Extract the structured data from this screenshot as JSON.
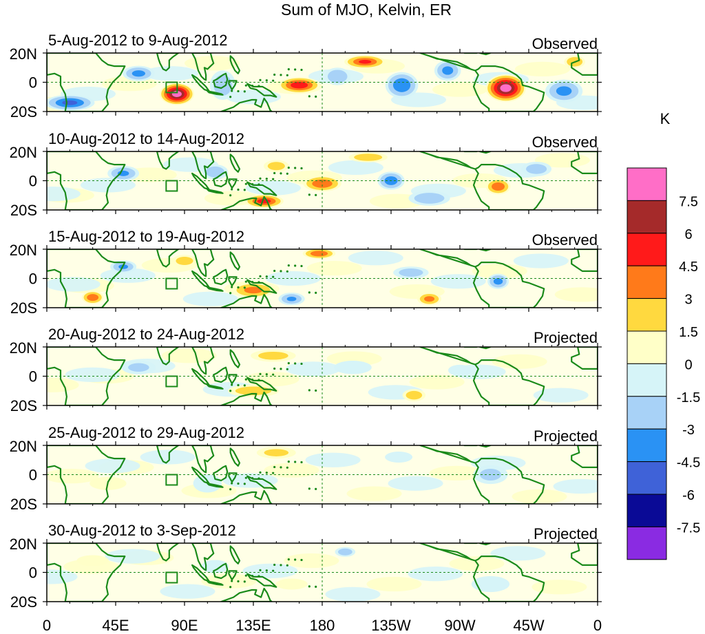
{
  "title": "Sum of MJO, Kelvin, ER",
  "panels": [
    {
      "period": "5-Aug-2012 to 9-Aug-2012",
      "kind": "Observed",
      "amp": 1.0,
      "blobs": [
        {
          "lon": 85,
          "lat": -8,
          "w": 12,
          "h": 8,
          "v": 9
        },
        {
          "lon": 300,
          "lat": -4,
          "w": 14,
          "h": 10,
          "v": 9
        },
        {
          "lon": 165,
          "lat": -2,
          "w": 15,
          "h": 6,
          "v": 6
        },
        {
          "lon": 208,
          "lat": 14,
          "w": 15,
          "h": 5,
          "v": 5
        },
        {
          "lon": 15,
          "lat": -14,
          "w": 18,
          "h": 6,
          "v": -5
        },
        {
          "lon": 60,
          "lat": 6,
          "w": 12,
          "h": 6,
          "v": -3.5
        },
        {
          "lon": 115,
          "lat": -2,
          "w": 10,
          "h": 12,
          "v": -2.5
        },
        {
          "lon": 190,
          "lat": 4,
          "w": 10,
          "h": 7,
          "v": -3
        },
        {
          "lon": 232,
          "lat": -2,
          "w": 12,
          "h": 10,
          "v": -4.5
        },
        {
          "lon": 262,
          "lat": 8,
          "w": 10,
          "h": 8,
          "v": -3.5
        },
        {
          "lon": 338,
          "lat": -6,
          "w": 14,
          "h": 9,
          "v": -3.5
        },
        {
          "lon": 345,
          "lat": 14,
          "w": 8,
          "h": 5,
          "v": 3
        }
      ]
    },
    {
      "period": "10-Aug-2012 to 14-Aug-2012",
      "kind": "Observed",
      "amp": 0.9,
      "blobs": [
        {
          "lon": 142,
          "lat": -14,
          "w": 14,
          "h": 5,
          "v": 6
        },
        {
          "lon": 180,
          "lat": -2,
          "w": 14,
          "h": 6,
          "v": 5
        },
        {
          "lon": 295,
          "lat": -4,
          "w": 9,
          "h": 6,
          "v": 5
        },
        {
          "lon": 210,
          "lat": 16,
          "w": 15,
          "h": 4,
          "v": 3
        },
        {
          "lon": 50,
          "lat": 5,
          "w": 12,
          "h": 6,
          "v": -3.5
        },
        {
          "lon": 110,
          "lat": 6,
          "w": 10,
          "h": 6,
          "v": -3
        },
        {
          "lon": 225,
          "lat": 0,
          "w": 10,
          "h": 7,
          "v": -4.5
        },
        {
          "lon": 250,
          "lat": -12,
          "w": 16,
          "h": 6,
          "v": -3
        },
        {
          "lon": 320,
          "lat": 8,
          "w": 12,
          "h": 6,
          "v": -2.5
        },
        {
          "lon": 150,
          "lat": 10,
          "w": 10,
          "h": 5,
          "v": 2.5
        }
      ]
    },
    {
      "period": "15-Aug-2012 to 19-Aug-2012",
      "kind": "Observed",
      "amp": 0.9,
      "blobs": [
        {
          "lon": 30,
          "lat": -13,
          "w": 8,
          "h": 5,
          "v": 5
        },
        {
          "lon": 135,
          "lat": -8,
          "w": 16,
          "h": 6,
          "v": 4
        },
        {
          "lon": 178,
          "lat": 17,
          "w": 12,
          "h": 4,
          "v": 5
        },
        {
          "lon": 250,
          "lat": -14,
          "w": 9,
          "h": 5,
          "v": 4
        },
        {
          "lon": 50,
          "lat": 8,
          "w": 10,
          "h": 5,
          "v": -3.5
        },
        {
          "lon": 160,
          "lat": -14,
          "w": 10,
          "h": 5,
          "v": -3.5
        },
        {
          "lon": 295,
          "lat": -2,
          "w": 8,
          "h": 6,
          "v": -4
        },
        {
          "lon": 238,
          "lat": 4,
          "w": 14,
          "h": 5,
          "v": -2.5
        },
        {
          "lon": 90,
          "lat": 12,
          "w": 10,
          "h": 5,
          "v": 2.5
        }
      ]
    },
    {
      "period": "20-Aug-2012 to 24-Aug-2012",
      "kind": "Projected",
      "amp": 0.7,
      "blobs": [
        {
          "lon": 135,
          "lat": -10,
          "w": 20,
          "h": 5,
          "v": 3.5
        },
        {
          "lon": 148,
          "lat": 14,
          "w": 18,
          "h": 5,
          "v": 3
        },
        {
          "lon": 240,
          "lat": -13,
          "w": 9,
          "h": 5,
          "v": 3.5
        },
        {
          "lon": 60,
          "lat": 6,
          "w": 14,
          "h": 6,
          "v": -2.5
        },
        {
          "lon": 200,
          "lat": 6,
          "w": 16,
          "h": 6,
          "v": -2
        },
        {
          "lon": 270,
          "lat": 4,
          "w": 10,
          "h": 5,
          "v": -2
        }
      ]
    },
    {
      "period": "25-Aug-2012 to 29-Aug-2012",
      "kind": "Projected",
      "amp": 0.6,
      "blobs": [
        {
          "lon": 150,
          "lat": 15,
          "w": 16,
          "h": 5,
          "v": 3
        },
        {
          "lon": 105,
          "lat": -6,
          "w": 12,
          "h": 8,
          "v": -2.5
        },
        {
          "lon": 290,
          "lat": 0,
          "w": 14,
          "h": 8,
          "v": -3
        },
        {
          "lon": 230,
          "lat": 12,
          "w": 12,
          "h": 5,
          "v": -2
        },
        {
          "lon": 40,
          "lat": -6,
          "w": 16,
          "h": 6,
          "v": 2
        }
      ]
    },
    {
      "period": "30-Aug-2012 to 3-Sep-2012",
      "kind": "Projected",
      "amp": 0.6,
      "blobs": [
        {
          "lon": 195,
          "lat": 14,
          "w": 8,
          "h": 4,
          "v": -4
        },
        {
          "lon": 290,
          "lat": -8,
          "w": 16,
          "h": 7,
          "v": -2.5
        },
        {
          "lon": 110,
          "lat": 4,
          "w": 12,
          "h": 6,
          "v": -2
        },
        {
          "lon": 30,
          "lat": 8,
          "w": 14,
          "h": 5,
          "v": 2
        },
        {
          "lon": 160,
          "lat": -8,
          "w": 14,
          "h": 5,
          "v": 2
        }
      ]
    }
  ],
  "lat_labels": [
    "20N",
    "0",
    "20S"
  ],
  "lon_labels": [
    "0",
    "45E",
    "90E",
    "135E",
    "180",
    "135W",
    "90W",
    "45W",
    "0"
  ],
  "legend": {
    "unit": "K",
    "labels": [
      "7.5",
      "6",
      "4.5",
      "3",
      "1.5",
      "0",
      "-1.5",
      "-3",
      "-4.5",
      "-6",
      "-7.5"
    ],
    "colors": [
      "#ff6ec7",
      "#a52a2a",
      "#ff1a1a",
      "#ff7a1a",
      "#ffd93f",
      "#ffffc8",
      "#d6f4f8",
      "#a8d2f7",
      "#2a92f4",
      "#3f62d8",
      "#0a0a96",
      "#8a2be2"
    ]
  },
  "colors": {
    "land": "#1a8a1a",
    "equator": "#1a8a1a",
    "frame": "#000000"
  }
}
